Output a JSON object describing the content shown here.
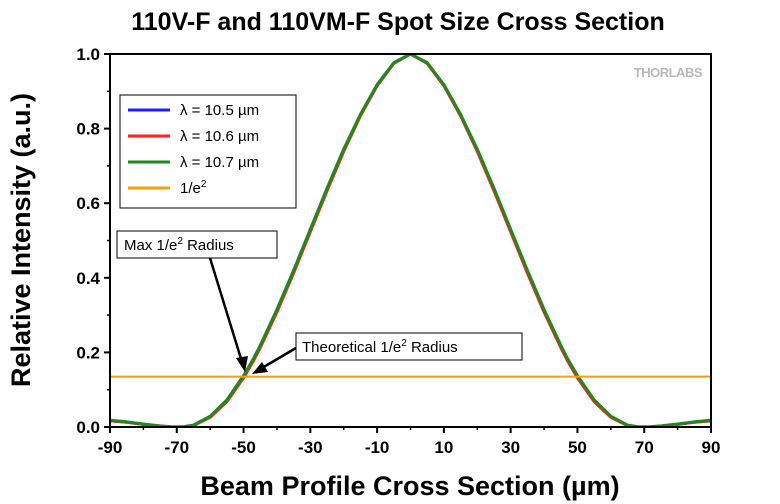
{
  "chart_data": {
    "type": "line",
    "title": "110V-F and 110VM-F Spot Size Cross Section",
    "xlabel": "Beam Profile Cross Section (µm)",
    "ylabel": "Relative Intensity (a.u.)",
    "xlim": [
      -90,
      90
    ],
    "ylim": [
      0,
      1.0
    ],
    "xticks": [
      "-90",
      "-70",
      "-50",
      "-30",
      "-10",
      "10",
      "30",
      "50",
      "70",
      "90"
    ],
    "yticks": [
      "0.0",
      "0.2",
      "0.4",
      "0.6",
      "0.8",
      "1.0"
    ],
    "legend_position": "top-left",
    "logo": "THORLABS",
    "series": [
      {
        "name": "λ = 10.5 µm",
        "color": "#1f1fff",
        "x": [
          -90,
          -85,
          -80,
          -75,
          -72,
          -70,
          -68,
          -65,
          -60,
          -55,
          -50,
          -47,
          -45,
          -40,
          -35,
          -30,
          -25,
          -20,
          -15,
          -10,
          -5,
          0,
          5,
          10,
          15,
          20,
          25,
          30,
          35,
          40,
          45,
          47,
          50,
          55,
          60,
          65,
          68,
          70,
          72,
          75,
          80,
          85,
          90
        ],
        "y": [
          0.017,
          0.013,
          0.007,
          0.002,
          0.0004,
          0.0,
          0.0003,
          0.004,
          0.027,
          0.07,
          0.134,
          0.18,
          0.215,
          0.31,
          0.415,
          0.525,
          0.635,
          0.74,
          0.835,
          0.915,
          0.975,
          1.0,
          0.975,
          0.915,
          0.835,
          0.74,
          0.635,
          0.525,
          0.415,
          0.31,
          0.215,
          0.18,
          0.134,
          0.07,
          0.027,
          0.004,
          0.0003,
          0.0,
          0.0004,
          0.002,
          0.007,
          0.013,
          0.017
        ]
      },
      {
        "name": "λ = 10.6 µm",
        "color": "#ff1f1f",
        "x": [
          -90,
          -85,
          -80,
          -75,
          -72,
          -70,
          -68,
          -65,
          -60,
          -55,
          -50,
          -47,
          -45,
          -40,
          -35,
          -30,
          -25,
          -20,
          -15,
          -10,
          -5,
          0,
          5,
          10,
          15,
          20,
          25,
          30,
          35,
          40,
          45,
          47,
          50,
          55,
          60,
          65,
          68,
          70,
          72,
          75,
          80,
          85,
          90
        ],
        "y": [
          0.017,
          0.013,
          0.007,
          0.002,
          0.0004,
          0.0,
          0.0003,
          0.004,
          0.026,
          0.068,
          0.132,
          0.178,
          0.213,
          0.308,
          0.413,
          0.523,
          0.633,
          0.739,
          0.834,
          0.915,
          0.975,
          1.0,
          0.975,
          0.915,
          0.834,
          0.739,
          0.633,
          0.523,
          0.413,
          0.308,
          0.213,
          0.178,
          0.132,
          0.068,
          0.026,
          0.004,
          0.0003,
          0.0,
          0.0004,
          0.002,
          0.007,
          0.013,
          0.017
        ]
      },
      {
        "name": "λ = 10.7 µm",
        "color": "#1e8a1e",
        "x": [
          -90,
          -85,
          -80,
          -75,
          -72,
          -70,
          -68,
          -65,
          -60,
          -55,
          -50,
          -47,
          -45,
          -40,
          -35,
          -30,
          -25,
          -20,
          -15,
          -10,
          -5,
          0,
          5,
          10,
          15,
          20,
          25,
          30,
          35,
          40,
          45,
          47,
          50,
          55,
          60,
          65,
          68,
          70,
          72,
          75,
          80,
          85,
          90
        ],
        "y": [
          0.018,
          0.014,
          0.008,
          0.003,
          0.001,
          0.0005,
          0.001,
          0.005,
          0.029,
          0.073,
          0.138,
          0.184,
          0.219,
          0.315,
          0.42,
          0.53,
          0.64,
          0.745,
          0.838,
          0.918,
          0.977,
          1.0,
          0.977,
          0.918,
          0.838,
          0.745,
          0.64,
          0.53,
          0.42,
          0.315,
          0.219,
          0.184,
          0.138,
          0.073,
          0.029,
          0.005,
          0.001,
          0.0005,
          0.001,
          0.003,
          0.008,
          0.014,
          0.018
        ]
      },
      {
        "name": "1/e2",
        "color": "#f5a011",
        "x": [
          -90,
          90
        ],
        "y": [
          0.135,
          0.135
        ]
      }
    ],
    "annotations": [
      {
        "text": "Max 1/e2 Radius",
        "arrow_to": [
          -49,
          0.16
        ]
      },
      {
        "text": "Theoretical 1/e2 Radius",
        "arrow_to": [
          -46,
          0.14
        ]
      }
    ]
  }
}
